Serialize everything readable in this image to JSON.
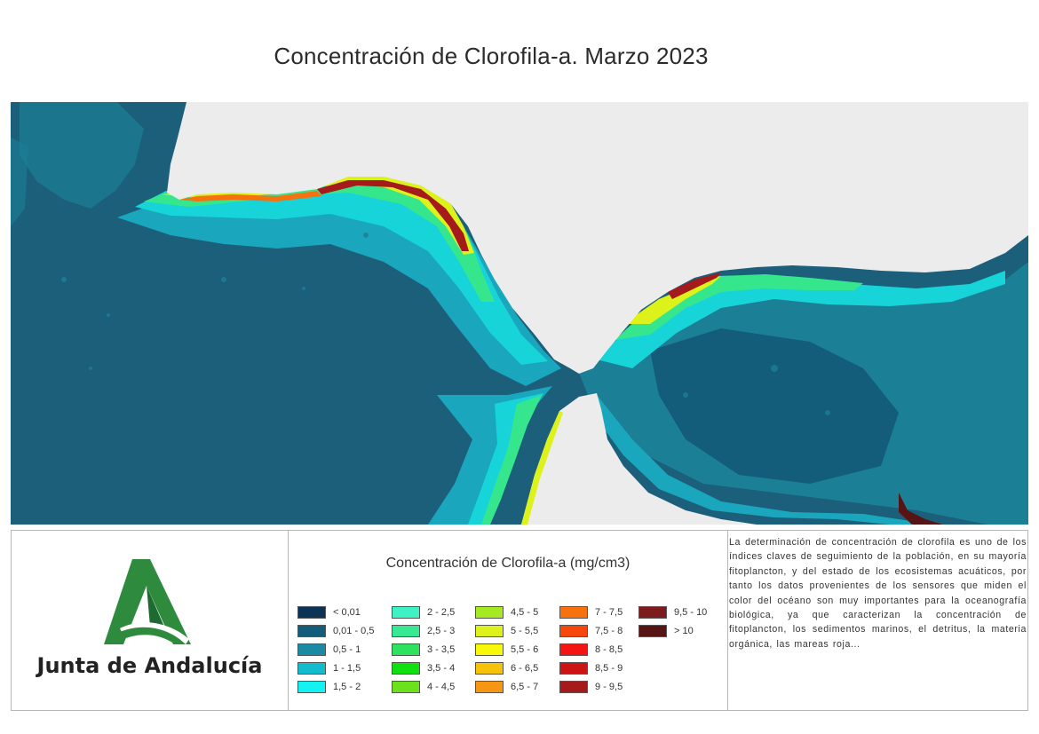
{
  "title": "Concentración de Clorofila-a. Marzo 2023",
  "logo": {
    "text": "Junta de Andalucía",
    "colors": {
      "green": "#2e8b3e",
      "dark_green": "#1d6b31"
    }
  },
  "legend": {
    "title": "Concentración de Clorofila-a (mg/cm3)",
    "columns": [
      [
        {
          "label": "< 0,01",
          "color": "#0b3355"
        },
        {
          "label": "0,01 - 0,5",
          "color": "#135c7a"
        },
        {
          "label": "0,5 - 1",
          "color": "#1b8aa3"
        },
        {
          "label": "1 - 1,5",
          "color": "#13bccc"
        },
        {
          "label": "1,5 - 2",
          "color": "#14f2f2"
        }
      ],
      [
        {
          "label": "2 - 2,5",
          "color": "#3ff2c4"
        },
        {
          "label": "2,5 - 3",
          "color": "#39e892"
        },
        {
          "label": "3 - 3,5",
          "color": "#2ee25e"
        },
        {
          "label": "3,5 - 4",
          "color": "#10e010"
        },
        {
          "label": "4 - 4,5",
          "color": "#6ce21c"
        }
      ],
      [
        {
          "label": "4,5 - 5",
          "color": "#a6ea22"
        },
        {
          "label": "5 - 5,5",
          "color": "#dcf21a"
        },
        {
          "label": "5,5 - 6",
          "color": "#f8f80a"
        },
        {
          "label": "6 - 6,5",
          "color": "#f7c30a"
        },
        {
          "label": "6,5 - 7",
          "color": "#f79612"
        }
      ],
      [
        {
          "label": "7 - 7,5",
          "color": "#f7720e"
        },
        {
          "label": "7,5 - 8",
          "color": "#f5460c"
        },
        {
          "label": "8 - 8,5",
          "color": "#f41414"
        },
        {
          "label": "8,5 - 9",
          "color": "#cc1414"
        },
        {
          "label": "9 - 9,5",
          "color": "#a51a1a"
        }
      ],
      [
        {
          "label": "9,5 - 10",
          "color": "#7d1c1c"
        },
        {
          "label": "> 10",
          "color": "#561414"
        }
      ]
    ]
  },
  "description": "La determinación de concentración de clorofila es uno de los índices claves de seguimiento de la población, en su mayoría fitoplancton, y del estado de los ecosistemas acuáticos, por tanto los datos provenientes de los sensores que miden el color del océano son muy importantes para la oceanografía biológica, ya que caracterizan la concentración de fitoplancton, los sedimentos marinos, el detritus, la materia orgánica, las mareas roja...",
  "map": {
    "land_color": "#ececec",
    "ocean_color": "#1b5f7b"
  }
}
